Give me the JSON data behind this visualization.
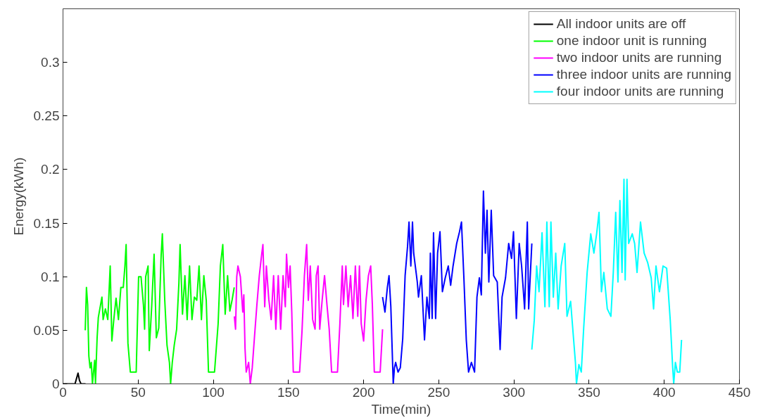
{
  "chart_data": {
    "type": "line",
    "xlabel": "Time(min)",
    "ylabel": "Energy(kWh)",
    "xlim": [
      0,
      450
    ],
    "ylim": [
      0,
      0.35
    ],
    "xticks": [
      0,
      50,
      100,
      150,
      200,
      250,
      300,
      350,
      400,
      450
    ],
    "yticks": [
      0,
      0.05,
      0.1,
      0.15,
      0.2,
      0.25,
      0.3
    ],
    "grid": false,
    "legend": "top right",
    "line_style": "solid",
    "series": [
      {
        "name": "All indoor units are off",
        "color": "#000000",
        "x": [
          0,
          8,
          9,
          10,
          11,
          12,
          15
        ],
        "values": [
          0,
          0,
          0.005,
          0.01,
          0.003,
          0,
          0
        ]
      },
      {
        "name": "one indoor unit is running",
        "color": "#00ff00",
        "x": [
          14.8,
          15.6,
          16.4,
          17.2,
          18.0,
          18.8,
          19.6,
          20.3,
          21.1,
          21.6,
          22.7,
          23.5,
          25.9,
          26.7,
          28.2,
          29.8,
          31.4,
          32.5,
          33.8,
          35.3,
          36.9,
          38.5,
          40.1,
          41.2,
          42.0,
          43.2,
          44.8,
          48.7,
          50.3,
          51.9,
          53.5,
          54.3,
          55.0,
          56.6,
          57.4,
          59.0,
          60.6,
          62.1,
          63.7,
          65.3,
          66.1,
          67.7,
          69.2,
          70.8,
          71.6,
          72.7,
          74.0,
          75.6,
          77.1,
          77.9,
          79.5,
          81.1,
          82.6,
          84.2,
          85.8,
          87.4,
          89.0,
          90.5,
          92.1,
          93.7,
          95.3,
          96.8,
          100.8,
          103.2,
          104.7,
          106.3,
          107.9,
          109.5,
          111.0,
          112.6,
          113.9
        ],
        "values": [
          0.05,
          0.09,
          0.074,
          0.026,
          0.015,
          0.02,
          0.0,
          0.011,
          0.022,
          0.0,
          0.043,
          0.062,
          0.081,
          0.06,
          0.07,
          0.06,
          0.11,
          0.04,
          0.06,
          0.08,
          0.06,
          0.09,
          0.09,
          0.11,
          0.13,
          0.038,
          0.011,
          0.011,
          0.1,
          0.1,
          0.074,
          0.051,
          0.1,
          0.11,
          0.031,
          0.072,
          0.121,
          0.043,
          0.052,
          0.12,
          0.14,
          0.078,
          0.036,
          0.02,
          0.0,
          0.02,
          0.036,
          0.051,
          0.094,
          0.13,
          0.065,
          0.101,
          0.06,
          0.11,
          0.06,
          0.081,
          0.078,
          0.11,
          0.06,
          0.101,
          0.078,
          0.011,
          0.011,
          0.056,
          0.11,
          0.13,
          0.065,
          0.101,
          0.068,
          0.079,
          0.09
        ]
      },
      {
        "name": "two indoor units are running",
        "color": "#ff00ff",
        "x": [
          114.0,
          114.8,
          115.6,
          116.4,
          118.0,
          119.6,
          120.3,
          121.1,
          121.9,
          123.5,
          124.6,
          125.9,
          127.4,
          129.0,
          130.6,
          132.2,
          133.0,
          134.2,
          135.3,
          136.9,
          138.5,
          140.1,
          141.6,
          143.2,
          144.8,
          146.4,
          147.9,
          148.7,
          150.0,
          151.1,
          152.2,
          153.2,
          157.4,
          159.0,
          160.6,
          162.1,
          163.2,
          164.5,
          166.1,
          167.7,
          168.5,
          169.7,
          170.8,
          172.4,
          174.0,
          175.6,
          177.1,
          178.7,
          182.6,
          184.2,
          185.8,
          186.6,
          188.2,
          189.7,
          191.3,
          192.9,
          194.5,
          196.1,
          197.2,
          198.4,
          200.0,
          201.6,
          203.2,
          204.7,
          205.8,
          207.1,
          211.0,
          212.6
        ],
        "values": [
          0.063,
          0.051,
          0.1,
          0.11,
          0.1,
          0.067,
          0.083,
          0.033,
          0.011,
          0.02,
          0.0,
          0.015,
          0.044,
          0.074,
          0.101,
          0.121,
          0.13,
          0.072,
          0.11,
          0.079,
          0.06,
          0.101,
          0.051,
          0.101,
          0.051,
          0.101,
          0.072,
          0.121,
          0.09,
          0.11,
          0.067,
          0.011,
          0.011,
          0.049,
          0.101,
          0.13,
          0.078,
          0.11,
          0.06,
          0.051,
          0.101,
          0.11,
          0.051,
          0.078,
          0.101,
          0.074,
          0.051,
          0.011,
          0.011,
          0.056,
          0.11,
          0.074,
          0.11,
          0.072,
          0.101,
          0.061,
          0.11,
          0.063,
          0.11,
          0.056,
          0.04,
          0.078,
          0.101,
          0.11,
          0.074,
          0.011,
          0.011,
          0.051
        ]
      },
      {
        "name": "three indoor units are running",
        "color": "#0000ff",
        "x": [
          212.6,
          214.2,
          215.8,
          216.9,
          218.1,
          219.7,
          220.5,
          221.3,
          222.9,
          224.4,
          226.0,
          227.6,
          229.2,
          230.2,
          231.4,
          232.5,
          233.3,
          235.7,
          236.5,
          238.4,
          240.5,
          242.1,
          243.7,
          244.4,
          245.6,
          246.5,
          247.9,
          249.2,
          250.8,
          252.4,
          254.3,
          256.3,
          257.9,
          259.5,
          261.9,
          263.8,
          265.1,
          266.7,
          268.3,
          269.8,
          271.7,
          273.8,
          275.4,
          277.0,
          278.3,
          279.7,
          281.0,
          282.1,
          283.3,
          284.9,
          286.5,
          288.9,
          290.8,
          292.1,
          294.4,
          296.5,
          298.4,
          299.7,
          301.6,
          303.5,
          305.1,
          307.1,
          308.9,
          309.8,
          311.9
        ],
        "values": [
          0.081,
          0.067,
          0.09,
          0.101,
          0.072,
          0.0,
          0.015,
          0.02,
          0.011,
          0.015,
          0.042,
          0.101,
          0.128,
          0.151,
          0.11,
          0.151,
          0.122,
          0.095,
          0.081,
          0.101,
          0.041,
          0.081,
          0.061,
          0.122,
          0.061,
          0.141,
          0.061,
          0.122,
          0.142,
          0.086,
          0.099,
          0.11,
          0.092,
          0.11,
          0.131,
          0.142,
          0.151,
          0.099,
          0.041,
          0.011,
          0.02,
          0.011,
          0.081,
          0.099,
          0.083,
          0.18,
          0.122,
          0.162,
          0.095,
          0.162,
          0.101,
          0.095,
          0.032,
          0.081,
          0.099,
          0.131,
          0.117,
          0.142,
          0.061,
          0.131,
          0.11,
          0.07,
          0.151,
          0.07,
          0.131
        ]
      },
      {
        "name": "four indoor units are running",
        "color": "#00ffff",
        "x": [
          311.9,
          313.5,
          315.1,
          316.7,
          318.7,
          320.6,
          321.9,
          323.5,
          324.6,
          326.2,
          327.8,
          329.4,
          331.4,
          333.8,
          335.3,
          337.7,
          340.9,
          341.6,
          343.2,
          344.8,
          346.4,
          348.7,
          351.1,
          353.2,
          355.0,
          356.6,
          358.2,
          359.8,
          362.1,
          364.5,
          366.1,
          367.7,
          369.2,
          370.5,
          371.9,
          373.2,
          374.0,
          375.2,
          376.3,
          378.7,
          380.3,
          381.9,
          384.2,
          386.6,
          389.0,
          391.3,
          392.9,
          394.5,
          396.8,
          399.2,
          401.6,
          404.0,
          405.5,
          406.3,
          407.4,
          408.7,
          410.3,
          411.5
        ],
        "values": [
          0.032,
          0.059,
          0.11,
          0.086,
          0.141,
          0.072,
          0.151,
          0.072,
          0.151,
          0.081,
          0.122,
          0.07,
          0.11,
          0.131,
          0.063,
          0.077,
          0.02,
          0.0,
          0.018,
          0.011,
          0.052,
          0.104,
          0.14,
          0.122,
          0.14,
          0.16,
          0.086,
          0.104,
          0.07,
          0.063,
          0.104,
          0.16,
          0.095,
          0.171,
          0.104,
          0.191,
          0.097,
          0.191,
          0.131,
          0.14,
          0.131,
          0.104,
          0.151,
          0.122,
          0.113,
          0.099,
          0.07,
          0.11,
          0.086,
          0.11,
          0.108,
          0.059,
          0.018,
          0.0,
          0.02,
          0.011,
          0.011,
          0.041
        ]
      }
    ]
  }
}
